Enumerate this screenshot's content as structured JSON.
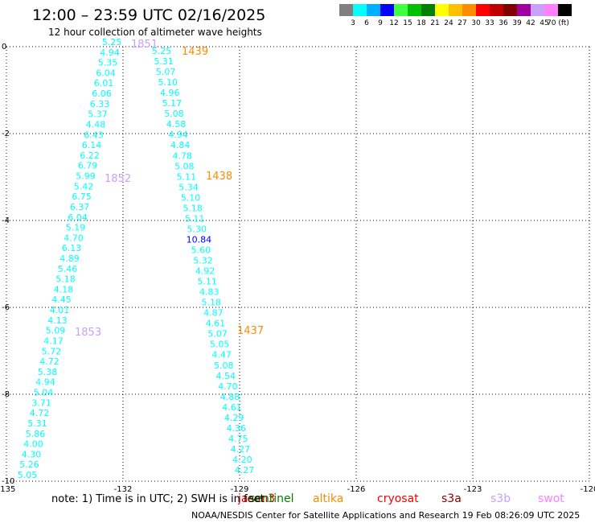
{
  "header": {
    "title": "12:00 – 23:59 UTC 02/16/2025",
    "subtitle": "12 hour collection of altimeter wave heights"
  },
  "color_scale": {
    "labels": [
      "3",
      "6",
      "9",
      "12",
      "15",
      "18",
      "21",
      "24",
      "27",
      "30",
      "33",
      "36",
      "39",
      "42",
      "45",
      "70 (ft)"
    ],
    "colors": [
      "#808080",
      "#00ffff",
      "#00b0ff",
      "#0000ff",
      "#40ff40",
      "#00c000",
      "#008000",
      "#ffff00",
      "#ffc000",
      "#ff8c00",
      "#ff0000",
      "#c00000",
      "#800000",
      "#a000a0",
      "#c8a0ff",
      "#ff80ff",
      "#000000"
    ]
  },
  "map": {
    "x_ticks": [
      "-135",
      "-132",
      "-129",
      "-126",
      "-123",
      "-120"
    ],
    "y_ticks": [
      "0",
      "-2",
      "-4",
      "-6",
      "-8",
      "-10"
    ],
    "track1": {
      "color": "#00ffff",
      "values": [
        "5.25",
        "4.94",
        "5.35",
        "6.04",
        "6.01",
        "6.06",
        "6.33",
        "5.37",
        "4.48",
        "6.43",
        "6.14",
        "6.22",
        "6.79",
        "5.99",
        "5.42",
        "6.75",
        "6.37",
        "6.04",
        "5.19",
        "4.70",
        "6.13",
        "4.89",
        "5.46",
        "5.18",
        "4.18",
        "4.45",
        "4.01",
        "4.13",
        "5.09",
        "4.17",
        "5.72",
        "4.72",
        "5.38",
        "4.94",
        "5.04",
        "3.71",
        "4.72",
        "5.31",
        "5.86",
        "4.00",
        "4.30",
        "5.26",
        "5.05"
      ],
      "time_labels": [
        {
          "text": "1851",
          "color": "#c8a0ff"
        },
        {
          "text": "1852",
          "color": "#c8a0ff"
        },
        {
          "text": "1853",
          "color": "#c8a0ff"
        }
      ]
    },
    "track2": {
      "values": [
        "5.25",
        "5.31",
        "5.07",
        "5.10",
        "4.96",
        "5.17",
        "5.08",
        "4.58",
        "4.94",
        "4.84",
        "4.78",
        "5.08",
        "5.11",
        "5.34",
        "5.10",
        "5.18",
        "5.11",
        "5.30",
        "10.84",
        "5.60",
        "5.32",
        "4.92",
        "5.11",
        "4.83",
        "5.18",
        "4.87",
        "4.61",
        "5.07",
        "5.05",
        "4.47",
        "5.08",
        "4.54",
        "4.70",
        "4.88",
        "4.61",
        "4.29",
        "4.36",
        "4.75",
        "4.27",
        "4.20",
        "4.27"
      ],
      "highlight": {
        "index": 18,
        "color": "#0000ff"
      },
      "time_labels": [
        {
          "text": "1439",
          "color": "#ff8c00"
        },
        {
          "text": "1438",
          "color": "#ff8c00"
        },
        {
          "text": "1437",
          "color": "#ff8c00"
        }
      ]
    }
  },
  "satellites": [
    {
      "name": "jason3",
      "color": "#ff0000"
    },
    {
      "name": "sentinel",
      "color": "#008000"
    },
    {
      "name": "altika",
      "color": "#ff8c00"
    },
    {
      "name": "cryosat",
      "color": "#ff0000"
    },
    {
      "name": "s3a",
      "color": "#800000"
    },
    {
      "name": "s3b",
      "color": "#c8a0ff"
    },
    {
      "name": "swot",
      "color": "#ff80ff"
    }
  ],
  "footer": {
    "note": "note:  1) Time is in UTC; 2) SWH is in feet",
    "credit": "NOAA/NESDIS Center for Satellite Applications and Research    19 Feb 08:26:09 UTC 2025"
  }
}
